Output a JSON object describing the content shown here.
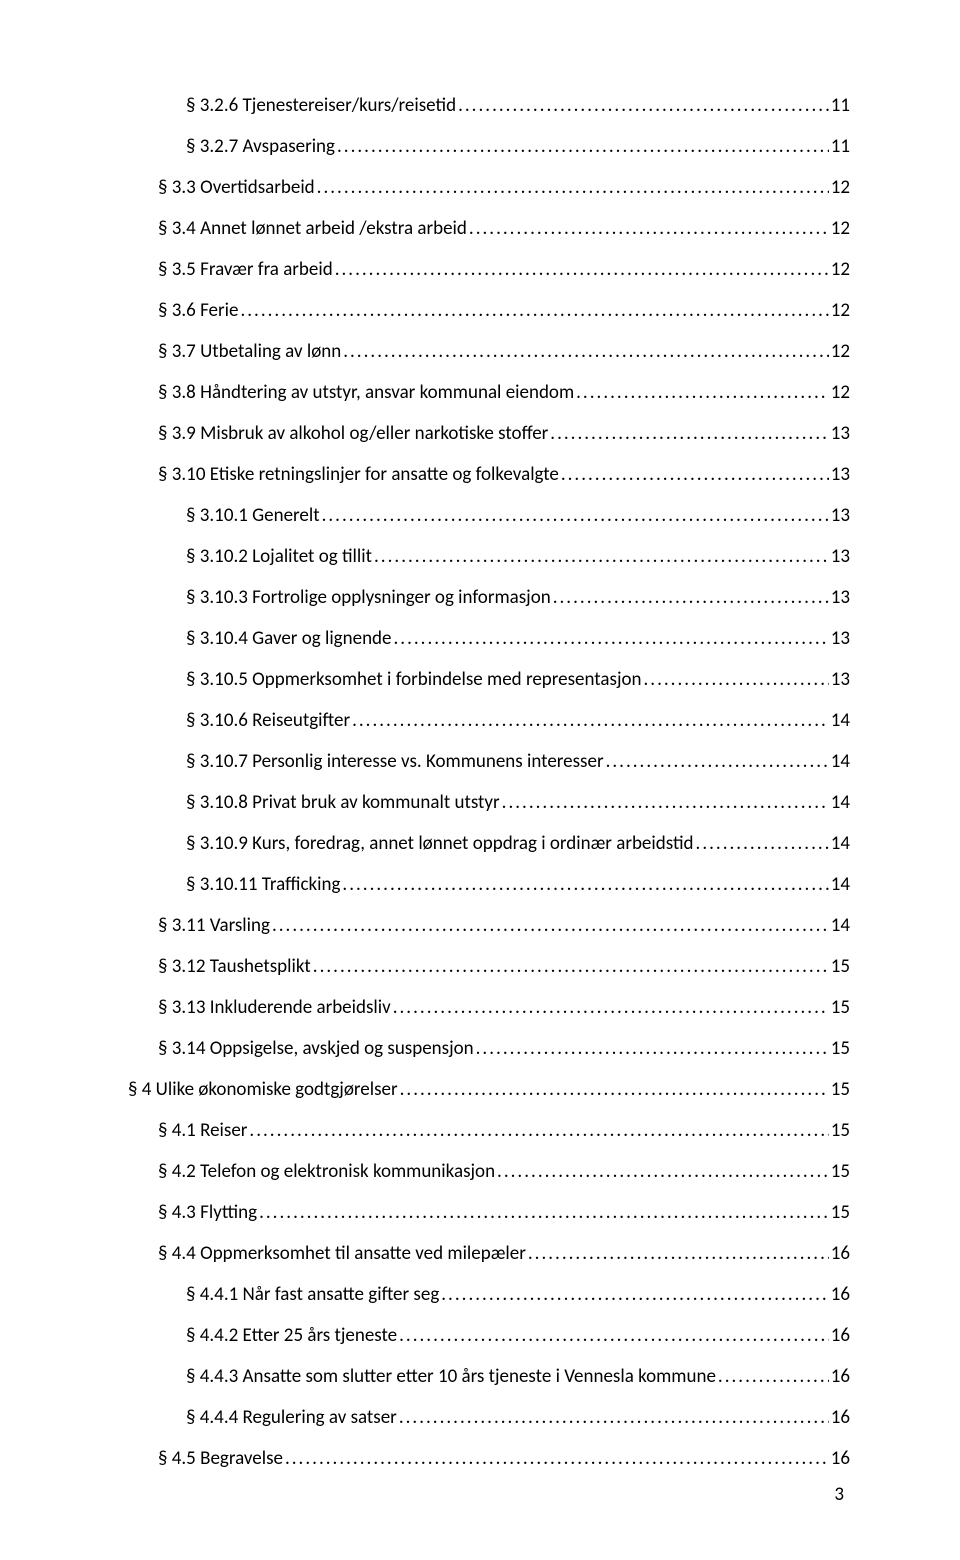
{
  "page_number": "3",
  "toc": [
    {
      "level": 3,
      "label": "§ 3.2.6 Tjenestereiser/kurs/reisetid",
      "page": "11"
    },
    {
      "level": 3,
      "label": "§ 3.2.7 Avspasering",
      "page": "11"
    },
    {
      "level": 2,
      "label": "§ 3.3 Overtidsarbeid",
      "page": "12"
    },
    {
      "level": 2,
      "label": "§ 3.4 Annet lønnet arbeid /ekstra arbeid",
      "page": "12"
    },
    {
      "level": 2,
      "label": "§ 3.5 Fravær fra arbeid",
      "page": "12"
    },
    {
      "level": 2,
      "label": "§ 3.6 Ferie",
      "page": "12"
    },
    {
      "level": 2,
      "label": "§ 3.7 Utbetaling av lønn",
      "page": "12"
    },
    {
      "level": 2,
      "label": "§ 3.8 Håndtering av utstyr, ansvar kommunal eiendom",
      "page": "12"
    },
    {
      "level": 2,
      "label": "§ 3.9 Misbruk av alkohol og/eller narkotiske stoffer",
      "page": "13"
    },
    {
      "level": 2,
      "label": "§ 3.10 Etiske retningslinjer for ansatte og folkevalgte",
      "page": "13"
    },
    {
      "level": 3,
      "label": "§ 3.10.1 Generelt",
      "page": "13"
    },
    {
      "level": 3,
      "label": "§ 3.10.2 Lojalitet og tillit",
      "page": "13"
    },
    {
      "level": 3,
      "label": "§ 3.10.3 Fortrolige opplysninger og informasjon",
      "page": "13"
    },
    {
      "level": 3,
      "label": "§ 3.10.4 Gaver og lignende",
      "page": "13"
    },
    {
      "level": 3,
      "label": "§ 3.10.5 Oppmerksomhet i forbindelse med representasjon",
      "page": "13"
    },
    {
      "level": 3,
      "label": "§ 3.10.6 Reiseutgifter",
      "page": "14"
    },
    {
      "level": 3,
      "label": "§ 3.10.7 Personlig interesse vs. Kommunens interesser",
      "page": "14"
    },
    {
      "level": 3,
      "label": "§ 3.10.8 Privat bruk av kommunalt utstyr",
      "page": "14"
    },
    {
      "level": 3,
      "label": "§ 3.10.9 Kurs, foredrag, annet lønnet oppdrag i ordinær arbeidstid",
      "page": "14"
    },
    {
      "level": 3,
      "label": "§ 3.10.11 Trafficking",
      "page": "14"
    },
    {
      "level": 2,
      "label": "§ 3.11 Varsling",
      "page": "14"
    },
    {
      "level": 2,
      "label": "§ 3.12 Taushetsplikt",
      "page": "15"
    },
    {
      "level": 2,
      "label": "§ 3.13 Inkluderende arbeidsliv",
      "page": "15"
    },
    {
      "level": 2,
      "label": "§ 3.14 Oppsigelse, avskjed og suspensjon",
      "page": "15"
    },
    {
      "level": 1,
      "label": "§ 4 Ulike økonomiske godtgjørelser",
      "page": "15"
    },
    {
      "level": 2,
      "label": "§ 4.1 Reiser",
      "page": "15"
    },
    {
      "level": 2,
      "label": "§ 4.2 Telefon og elektronisk kommunikasjon",
      "page": "15"
    },
    {
      "level": 2,
      "label": "§ 4.3 Flytting",
      "page": "15"
    },
    {
      "level": 2,
      "label": "§ 4.4 Oppmerksomhet til ansatte ved milepæler",
      "page": "16"
    },
    {
      "level": 3,
      "label": "§ 4.4.1 Når fast ansatte gifter seg",
      "page": "16"
    },
    {
      "level": 3,
      "label": "§ 4.4.2 Etter 25 års tjeneste",
      "page": "16"
    },
    {
      "level": 3,
      "label": "§ 4.4.3 Ansatte som slutter etter 10 års tjeneste i Vennesla kommune",
      "page": "16"
    },
    {
      "level": 3,
      "label": "§ 4.4.4 Regulering av satser",
      "page": "16"
    },
    {
      "level": 2,
      "label": "§ 4.5 Begravelse",
      "page": "16"
    }
  ]
}
